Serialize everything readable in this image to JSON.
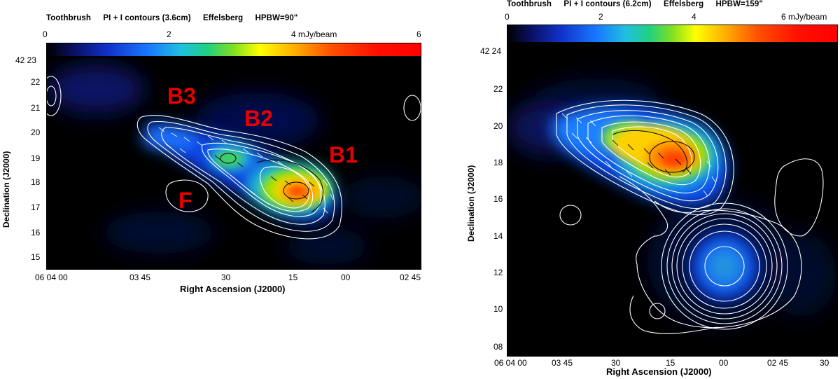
{
  "left": {
    "title": [
      "Toothbrush",
      "PI + I contours (3.6cm)",
      "Effelsberg",
      "HPBW=90\""
    ],
    "colorbar_ticks": [
      "0",
      "2",
      "4 mJy/beam",
      "6"
    ],
    "dec_ticks": [
      "42 23",
      "22",
      "21",
      "20",
      "19",
      "18",
      "17",
      "16",
      "15"
    ],
    "ra_ticks": [
      "06 04 00",
      "03 45",
      "30",
      "15",
      "00",
      "02 45"
    ],
    "xlabel": "Right Ascension (J2000)",
    "ylabel": "Declination (J2000)",
    "labels": [
      "B3",
      "B2",
      "B1",
      "F"
    ]
  },
  "right": {
    "title": [
      "Toothbrush",
      "PI + I contours (6.2cm)",
      "Effelsberg",
      "HPBW=159\""
    ],
    "colorbar_ticks": [
      "0",
      "2",
      "4",
      "6 mJy/beam"
    ],
    "dec_ticks": [
      "42 24",
      "22",
      "20",
      "18",
      "16",
      "14",
      "12",
      "10",
      "08"
    ],
    "ra_ticks": [
      "06 04 00",
      "03 45",
      "30",
      "15",
      "00",
      "02 45",
      "30"
    ],
    "xlabel": "Right Ascension (J2000)",
    "ylabel": "Declination (J2000)"
  },
  "colormap": [
    "#000000",
    "#0a1480",
    "#1040ff",
    "#20a8ff",
    "#20d070",
    "#a0e000",
    "#ffff00",
    "#ffa000",
    "#ff3000",
    "#ff0000"
  ]
}
